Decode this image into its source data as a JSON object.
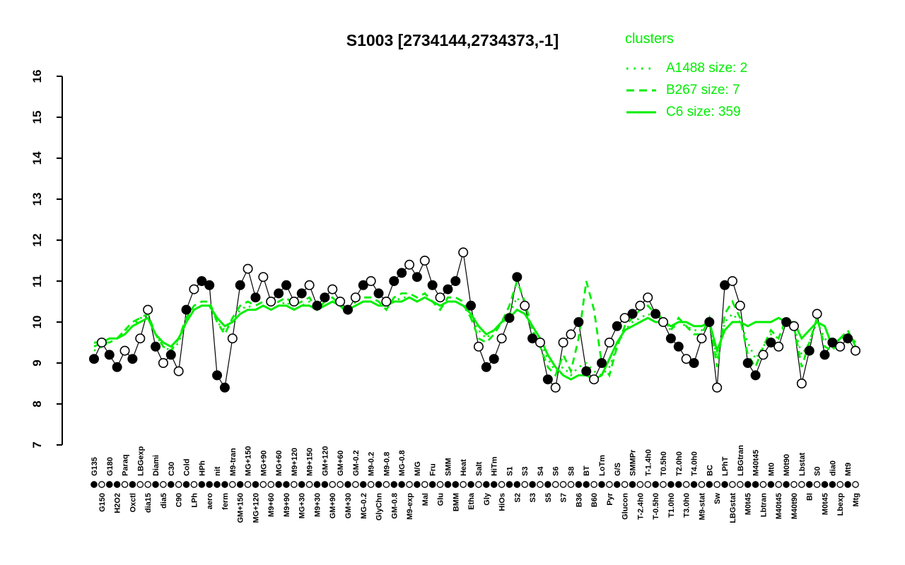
{
  "colors": {
    "cluster_green": "#00ee00",
    "point_black": "#000000",
    "open_fill": "#ffffff",
    "background": "#ffffff"
  },
  "legend": {
    "title": "clusters",
    "entries": [
      {
        "label": "A1488 size: 2",
        "style": "dotted"
      },
      {
        "label": "B267 size: 7",
        "style": "dashed"
      },
      {
        "label": "C6 size: 359",
        "style": "solid"
      }
    ]
  },
  "y_axis": {
    "ticks": [
      "7",
      "8",
      "9",
      "10",
      "11",
      "12",
      "13",
      "14",
      "15",
      "16"
    ],
    "min": 7,
    "max": 16
  },
  "chart_data": {
    "type": "line",
    "title": "S1003 [2734144,2734373,-1]",
    "xlabel": "",
    "ylabel": "",
    "ylim": [
      7,
      16
    ],
    "grid": false,
    "legend_position": "top-right",
    "categories": [
      "G135",
      "G150",
      "G180",
      "H2O2",
      "Paraq",
      "Oxctl",
      "LBGexp",
      "dia15",
      "Diami",
      "dia5",
      "C30",
      "C90",
      "Cold",
      "LPh",
      "HPh",
      "aero",
      "nit",
      "ferm",
      "M9-tran",
      "GM+150",
      "MG+150",
      "MG+120",
      "MG+90",
      "M9+60",
      "MG+60",
      "M9+90",
      "M9+120",
      "MG+30",
      "M9+150",
      "M9+30",
      "GM+120",
      "GM+90",
      "GM+60",
      "GM+30",
      "GM-0.2",
      "MG-0.2",
      "M9-0.2",
      "GlyChn",
      "M9-0.8",
      "GM-0.8",
      "MG-0.8",
      "M9-exp",
      "M/G",
      "Mal",
      "Fru",
      "Glu",
      "SMM",
      "BMM",
      "Heat",
      "Etha",
      "Salt",
      "Gly",
      "HiTm",
      "HiOs",
      "S1",
      "S2",
      "S3",
      "S3",
      "S4",
      "S5",
      "S6",
      "S7",
      "S8",
      "B36",
      "BT",
      "B60",
      "LoTm",
      "Pyr",
      "G/S",
      "Glucon",
      "SMMPr",
      "T-2.4h0",
      "T-1.4h0",
      "T-0.5h0",
      "T0.5h0",
      "T1.0h0",
      "T2.0h0",
      "T3.0h0",
      "T4.0h0",
      "M9-stat",
      "BC",
      "Sw",
      "LPhT",
      "LBGstat",
      "LBGtran",
      "M0t45",
      "M40t45",
      "Lbtran",
      "Mt0",
      "M40t45",
      "M0t90",
      "M40t90",
      "Lbstat",
      "BI",
      "S0",
      "M0t45",
      "dia0",
      "Lbexp",
      "Mt9",
      "Mtg"
    ],
    "series": [
      {
        "name": "S1003 expression",
        "role": "gene-profile",
        "color": "#000000",
        "marker": "circle",
        "values": [
          9.1,
          9.5,
          9.2,
          8.9,
          9.3,
          9.1,
          9.6,
          10.3,
          9.4,
          9.0,
          9.2,
          8.8,
          10.3,
          10.8,
          11.0,
          10.9,
          8.7,
          8.4,
          9.6,
          10.9,
          11.3,
          10.6,
          11.1,
          10.5,
          10.7,
          10.9,
          10.5,
          10.7,
          10.9,
          10.4,
          10.6,
          10.8,
          10.5,
          10.3,
          10.6,
          10.9,
          11.0,
          10.7,
          10.5,
          11.0,
          11.2,
          11.4,
          11.1,
          11.5,
          10.9,
          10.6,
          10.8,
          11.0,
          11.7,
          10.4,
          9.4,
          8.9,
          9.1,
          9.6,
          10.1,
          11.1,
          10.4,
          9.6,
          9.5,
          8.6,
          8.4,
          9.5,
          9.7,
          10.0,
          8.8,
          8.6,
          9.0,
          9.5,
          9.9,
          10.1,
          10.2,
          10.4,
          10.6,
          10.2,
          10.0,
          9.6,
          9.4,
          9.1,
          9.0,
          9.6,
          10.0,
          8.4,
          10.9,
          11.0,
          10.4,
          9.0,
          8.7,
          9.2,
          9.5,
          9.4,
          10.0,
          9.9,
          8.5,
          9.3,
          10.2,
          9.2,
          9.5,
          9.4,
          9.6,
          9.3
        ],
        "filled": [
          1,
          0,
          1,
          1,
          0,
          1,
          0,
          0,
          1,
          0,
          1,
          0,
          1,
          0,
          1,
          1,
          1,
          1,
          0,
          1,
          0,
          1,
          0,
          0,
          1,
          1,
          0,
          1,
          0,
          1,
          1,
          0,
          0,
          1,
          0,
          1,
          0,
          1,
          0,
          1,
          1,
          0,
          1,
          0,
          1,
          0,
          1,
          1,
          0,
          1,
          0,
          1,
          1,
          0,
          1,
          1,
          0,
          1,
          0,
          1,
          0,
          0,
          0,
          1,
          1,
          0,
          1,
          0,
          1,
          0,
          1,
          0,
          0,
          1,
          0,
          1,
          1,
          0,
          1,
          0,
          1,
          0,
          1,
          0,
          0,
          1,
          1,
          0,
          1,
          0,
          1,
          0,
          0,
          1,
          0,
          1,
          1,
          0,
          1,
          0
        ]
      },
      {
        "name": "A1488",
        "role": "cluster-mean",
        "size": 2,
        "style": "dotted",
        "color": "#00ee00",
        "values": [
          9.3,
          9.4,
          9.5,
          9.6,
          9.8,
          9.9,
          10.1,
          10.1,
          9.7,
          9.4,
          9.3,
          9.5,
          10.0,
          10.3,
          10.4,
          10.4,
          10.0,
          9.8,
          10.0,
          10.3,
          10.4,
          10.3,
          10.4,
          10.3,
          10.4,
          10.5,
          10.3,
          10.4,
          10.5,
          10.3,
          10.4,
          10.5,
          10.4,
          10.3,
          10.4,
          10.5,
          10.5,
          10.4,
          10.4,
          10.5,
          10.6,
          10.6,
          10.5,
          10.6,
          10.5,
          10.4,
          10.5,
          10.5,
          10.4,
          10.1,
          9.8,
          9.6,
          9.8,
          10.0,
          10.2,
          10.6,
          10.3,
          9.8,
          9.5,
          9.1,
          8.8,
          8.9,
          8.7,
          8.9,
          9.0,
          8.8,
          8.7,
          8.9,
          9.4,
          9.8,
          10.0,
          10.1,
          10.2,
          10.1,
          10.0,
          9.8,
          10.0,
          9.9,
          9.8,
          9.8,
          10.0,
          9.1,
          10.0,
          10.2,
          10.0,
          9.5,
          9.1,
          9.4,
          9.7,
          9.6,
          10.0,
          9.9,
          9.2,
          9.5,
          10.0,
          9.6,
          9.4,
          9.6,
          9.7,
          9.5
        ]
      },
      {
        "name": "B267",
        "role": "cluster-mean",
        "size": 7,
        "style": "dashed",
        "color": "#00ee00",
        "values": [
          9.4,
          9.5,
          9.5,
          9.6,
          9.8,
          10.0,
          10.1,
          10.2,
          9.7,
          9.4,
          9.3,
          9.6,
          10.1,
          10.4,
          10.5,
          10.5,
          10.0,
          9.7,
          10.1,
          10.4,
          10.5,
          10.4,
          10.5,
          10.4,
          10.5,
          10.6,
          10.4,
          10.5,
          10.6,
          10.3,
          10.5,
          10.6,
          10.4,
          10.2,
          10.5,
          10.6,
          10.6,
          10.5,
          10.3,
          10.6,
          10.7,
          10.7,
          10.6,
          10.7,
          10.5,
          10.3,
          10.6,
          10.6,
          10.5,
          10.1,
          9.6,
          9.5,
          9.7,
          10.0,
          10.4,
          11.0,
          10.5,
          9.8,
          9.4,
          8.9,
          8.7,
          9.2,
          8.8,
          9.6,
          11.0,
          10.3,
          9.0,
          8.7,
          9.4,
          9.9,
          10.1,
          10.3,
          10.4,
          10.2,
          10.1,
          9.8,
          10.1,
          9.9,
          9.7,
          9.7,
          10.1,
          8.9,
          10.2,
          10.5,
          10.1,
          9.2,
          8.9,
          9.4,
          9.8,
          9.6,
          10.1,
          9.9,
          8.9,
          9.5,
          10.1,
          9.4,
          9.3,
          9.6,
          9.8,
          9.4
        ]
      },
      {
        "name": "C6",
        "role": "cluster-mean",
        "size": 359,
        "style": "solid",
        "color": "#00ee00",
        "values": [
          9.5,
          9.5,
          9.6,
          9.6,
          9.7,
          9.9,
          10.0,
          10.1,
          9.7,
          9.5,
          9.4,
          9.6,
          10.0,
          10.3,
          10.4,
          10.4,
          10.1,
          9.9,
          10.0,
          10.2,
          10.3,
          10.3,
          10.4,
          10.3,
          10.4,
          10.4,
          10.3,
          10.4,
          10.4,
          10.3,
          10.4,
          10.5,
          10.4,
          10.3,
          10.4,
          10.5,
          10.5,
          10.4,
          10.4,
          10.5,
          10.5,
          10.6,
          10.5,
          10.6,
          10.5,
          10.4,
          10.5,
          10.5,
          10.4,
          10.2,
          9.9,
          9.7,
          9.8,
          10.0,
          10.1,
          10.3,
          10.2,
          9.9,
          9.6,
          9.2,
          8.9,
          8.7,
          8.6,
          8.7,
          8.7,
          8.6,
          8.7,
          9.1,
          9.5,
          9.8,
          9.9,
          10.0,
          10.1,
          10.0,
          10.0,
          9.9,
          10.0,
          10.0,
          9.9,
          9.9,
          10.0,
          9.3,
          9.8,
          10.0,
          10.0,
          9.9,
          10.0,
          10.0,
          10.0,
          10.1,
          10.0,
          10.0,
          9.6,
          9.8,
          10.0,
          9.9,
          9.4,
          9.6,
          9.7,
          9.5
        ]
      }
    ]
  }
}
